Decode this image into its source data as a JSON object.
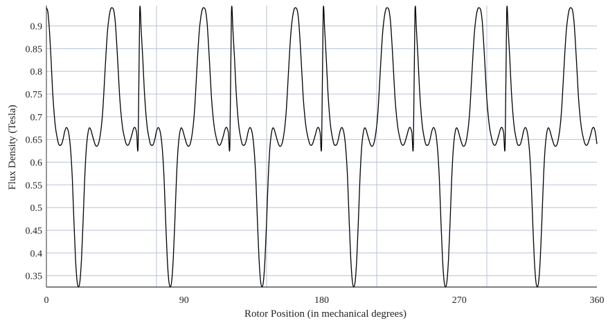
{
  "chart_data": {
    "type": "line",
    "title": "",
    "xlabel": "Rotor Position (in mechanical degrees)",
    "ylabel": "Flux Density (Tesla)",
    "xlim": [
      0,
      360
    ],
    "ylim": [
      0.325,
      0.945
    ],
    "x_ticks": [
      0,
      90,
      180,
      270,
      360
    ],
    "x_tick_labels": [
      "0",
      "90",
      "180",
      "270",
      "360"
    ],
    "x_gridlines": [
      72,
      144,
      216,
      288
    ],
    "y_ticks": [
      0.35,
      0.4,
      0.45,
      0.5,
      0.55,
      0.6,
      0.65,
      0.7,
      0.75,
      0.8,
      0.85,
      0.9
    ],
    "y_tick_labels": [
      "0.35",
      "0.4",
      "0.45",
      "0.5",
      "0.55",
      "0.6",
      "0.65",
      "0.7",
      "0.75",
      "0.8",
      "0.85",
      "0.9"
    ],
    "grid": true,
    "grid_color": "#b8c2d2",
    "line_color": "#000000",
    "legend": "none",
    "period_degrees": 60,
    "series": [
      {
        "x": [
          0,
          1,
          2,
          3,
          4,
          5,
          6,
          7,
          8,
          9,
          10,
          11,
          12,
          13,
          14,
          15,
          16,
          17,
          18,
          19,
          20,
          21,
          22,
          23,
          24,
          25,
          26,
          27,
          28,
          29,
          30,
          31,
          32,
          33,
          34,
          35,
          36,
          37,
          38,
          39,
          40,
          41,
          42,
          43,
          44,
          45,
          46,
          47,
          48,
          49,
          50,
          51,
          52,
          53,
          54,
          55,
          56,
          57,
          58,
          59,
          60
        ],
        "y": [
          0.94,
          0.93,
          0.89,
          0.83,
          0.76,
          0.71,
          0.675,
          0.655,
          0.64,
          0.637,
          0.64,
          0.652,
          0.668,
          0.676,
          0.672,
          0.655,
          0.62,
          0.56,
          0.47,
          0.39,
          0.34,
          0.325,
          0.34,
          0.39,
          0.47,
          0.56,
          0.625,
          0.66,
          0.675,
          0.672,
          0.66,
          0.648,
          0.638,
          0.635,
          0.64,
          0.655,
          0.68,
          0.72,
          0.78,
          0.84,
          0.89,
          0.92,
          0.937,
          0.94,
          0.935,
          0.91,
          0.86,
          0.8,
          0.74,
          0.7,
          0.672,
          0.655,
          0.642,
          0.637,
          0.64,
          0.65,
          0.662,
          0.674,
          0.676,
          0.665,
          0.64
        ]
      }
    ]
  }
}
